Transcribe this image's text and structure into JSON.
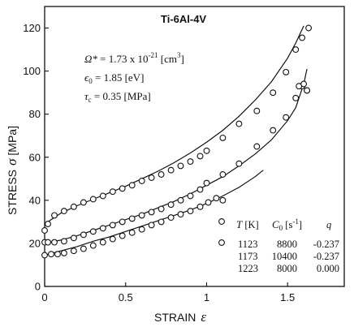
{
  "chart_data": {
    "type": "scatter",
    "title": "Ti-6Al-4V",
    "xlabel": "STRAIN",
    "xlabel_symbol": "ε",
    "ylabel": "STRESS",
    "ylabel_symbol": "σ",
    "ylabel_unit": "[MPa]",
    "xlim": [
      0,
      1.85
    ],
    "ylim": [
      0,
      130
    ],
    "xticks": [
      0,
      0.5,
      1,
      1.5
    ],
    "xtick_labels": [
      "0",
      "0.5",
      "1",
      "1.5"
    ],
    "yticks": [
      0,
      20,
      40,
      60,
      80,
      100,
      120
    ],
    "ytick_labels": [
      "0",
      "20",
      "40",
      "60",
      "80",
      "100",
      "120"
    ],
    "grid": false,
    "annotations": {
      "omega": {
        "sym": "Ω*",
        "eq": " = 1.73 x 10",
        "exp": "-21",
        "unit": " [cm",
        "unit_exp": "3",
        "unit_end": "]"
      },
      "eps0": {
        "sym": "ϵ",
        "sub": "0",
        "eq": " = 1.85 [eV]"
      },
      "tauc": {
        "sym": "τ",
        "sub": "c",
        "eq": " = 0.35 [MPa]"
      }
    },
    "table": {
      "h_T": "T",
      "h_T_unit": " [K]",
      "h_C": "C",
      "h_C_sub": "0",
      "h_C_unit": " [s",
      "h_C_exp": "-1",
      "h_C_end": "]",
      "h_q": "q",
      "rows": [
        {
          "T": "1123",
          "C0": "8800",
          "q": "-0.237"
        },
        {
          "T": "1173",
          "C0": "10400",
          "q": "-0.237"
        },
        {
          "T": "1223",
          "C0": "8000",
          "q": "0.000"
        }
      ]
    },
    "series": [
      {
        "T": "1123",
        "kind": "experimental",
        "x": [
          0,
          0.02,
          0.06,
          0.12,
          0.18,
          0.24,
          0.3,
          0.36,
          0.42,
          0.48,
          0.54,
          0.6,
          0.66,
          0.72,
          0.78,
          0.84,
          0.9,
          0.96,
          1.0,
          1.1,
          1.2,
          1.31,
          1.41,
          1.49,
          1.55,
          1.59,
          1.63
        ],
        "y": [
          26,
          29,
          33,
          35,
          37,
          39,
          40.5,
          42,
          44,
          45.5,
          47,
          49,
          50.5,
          52,
          54,
          56,
          58,
          60.5,
          63,
          69,
          75.5,
          81.5,
          90,
          99.5,
          110,
          115.5,
          120
        ]
      },
      {
        "T": "1123",
        "kind": "model",
        "x": [
          0,
          0.1,
          0.2,
          0.3,
          0.4,
          0.5,
          0.6,
          0.7,
          0.8,
          0.9,
          1.0,
          1.1,
          1.2,
          1.3,
          1.4,
          1.5,
          1.55,
          1.6
        ],
        "y": [
          29,
          34,
          37.5,
          40.5,
          43.5,
          46.5,
          50,
          53.5,
          57.5,
          62,
          67,
          72.5,
          79,
          86.5,
          95,
          106,
          113,
          121
        ]
      },
      {
        "T": "1173",
        "kind": "experimental",
        "x": [
          0,
          0.02,
          0.06,
          0.12,
          0.18,
          0.24,
          0.3,
          0.36,
          0.42,
          0.48,
          0.54,
          0.6,
          0.66,
          0.72,
          0.78,
          0.84,
          0.9,
          0.96,
          1.0,
          1.1,
          1.2,
          1.31,
          1.41,
          1.49,
          1.55,
          1.59,
          1.62
        ],
        "y": [
          20.5,
          20.5,
          20.5,
          21,
          22.5,
          24,
          25.5,
          27,
          28.5,
          30,
          31.5,
          33,
          34.5,
          36,
          38,
          40,
          42,
          45,
          48,
          52,
          57,
          65,
          72.5,
          78.5,
          87.5,
          93,
          91
        ]
      },
      {
        "T": "1173",
        "kind": "model",
        "x": [
          0,
          0.1,
          0.2,
          0.3,
          0.4,
          0.5,
          0.6,
          0.7,
          0.8,
          0.9,
          1.0,
          1.1,
          1.2,
          1.3,
          1.4,
          1.5,
          1.55,
          1.6,
          1.62
        ],
        "y": [
          20,
          21.5,
          23.5,
          26,
          28.5,
          31,
          33.5,
          36.5,
          39.5,
          43,
          47,
          51,
          56,
          61.5,
          68,
          77,
          83,
          94,
          101
        ]
      },
      {
        "T": "1223",
        "kind": "experimental",
        "x": [
          0,
          0.04,
          0.08,
          0.12,
          0.18,
          0.24,
          0.3,
          0.36,
          0.42,
          0.48,
          0.54,
          0.6,
          0.66,
          0.72,
          0.78,
          0.84,
          0.9,
          0.96,
          1.01,
          1.06,
          1.1
        ],
        "y": [
          14.5,
          15,
          15,
          15.5,
          16.5,
          17.5,
          19,
          20.5,
          22,
          23.5,
          25,
          26.5,
          28.5,
          30,
          32,
          33.5,
          35,
          37,
          39,
          41,
          40
        ]
      },
      {
        "T": "1223",
        "kind": "model",
        "x": [
          0,
          0.1,
          0.2,
          0.3,
          0.4,
          0.5,
          0.6,
          0.7,
          0.8,
          0.9,
          1.0,
          1.1,
          1.2,
          1.3,
          1.35
        ],
        "y": [
          14.5,
          16.5,
          18.5,
          21,
          23,
          25.5,
          28,
          30.5,
          33,
          35.5,
          38.5,
          42,
          46,
          51,
          54
        ]
      },
      {
        "T": "1123",
        "kind": "experimental-high",
        "x": [
          1.57,
          1.6,
          1.62
        ],
        "y": [
          93,
          94,
          91
        ]
      }
    ]
  }
}
